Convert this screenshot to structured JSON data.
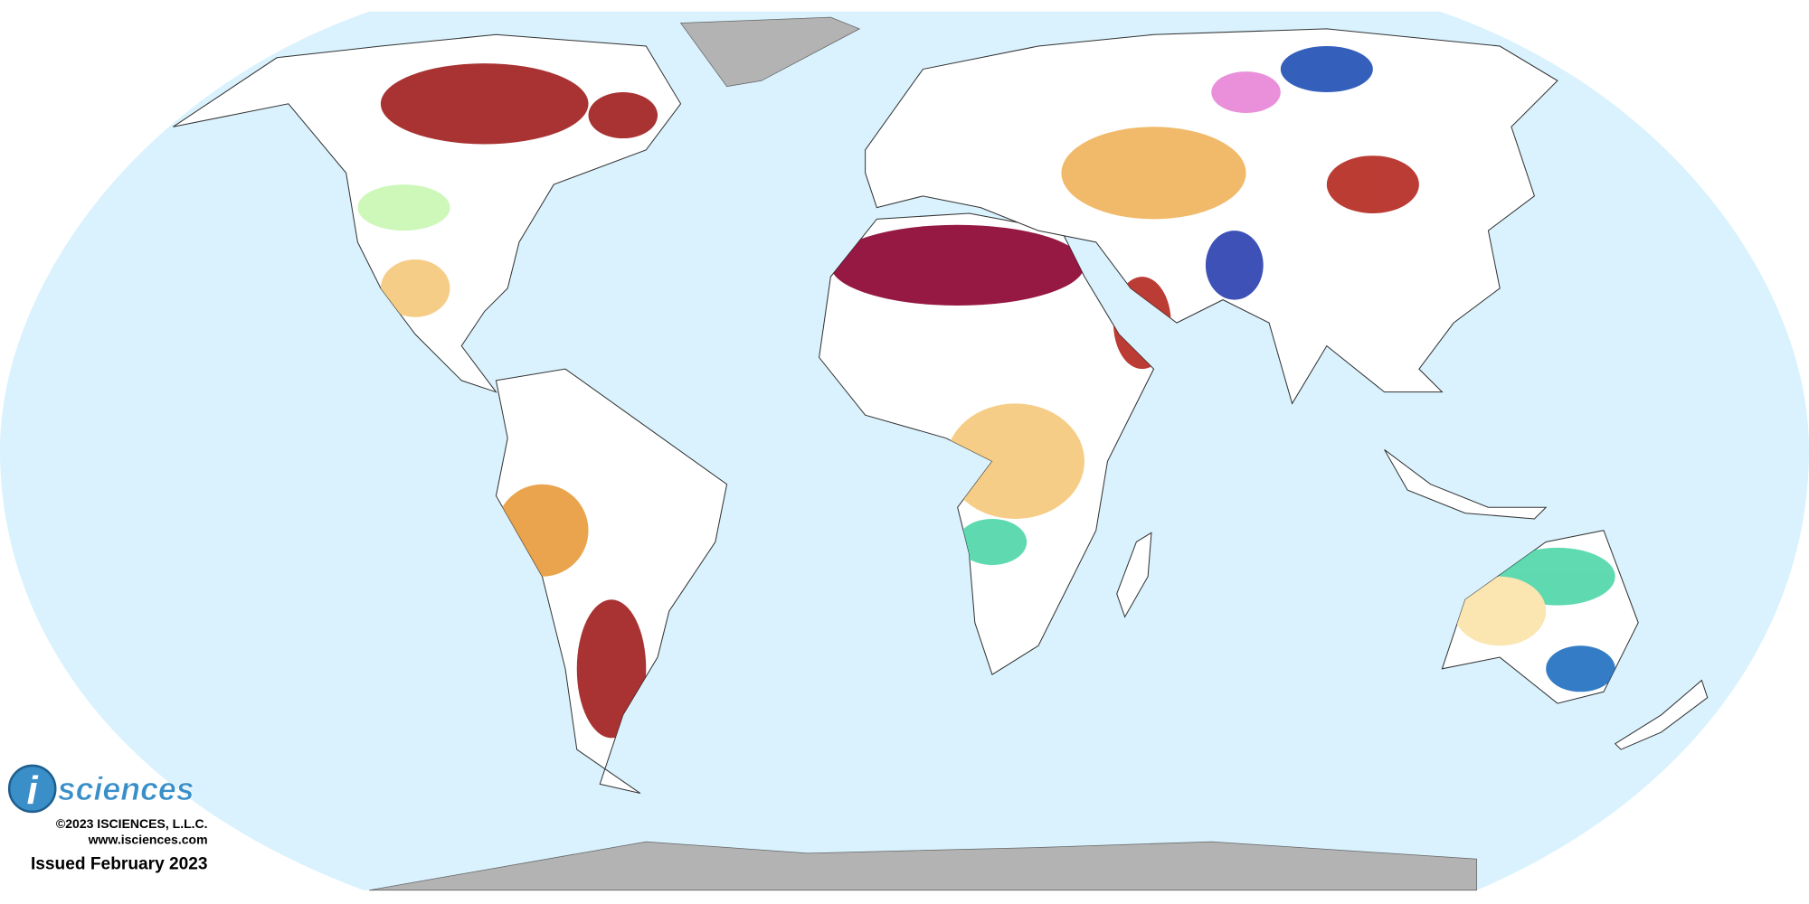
{
  "logo": {
    "mark": "i",
    "word": "sciences"
  },
  "copyright": "©2023 ISCIENCES, L.L.C.",
  "website": "www.isciences.com",
  "issued": "Issued February 2023"
}
